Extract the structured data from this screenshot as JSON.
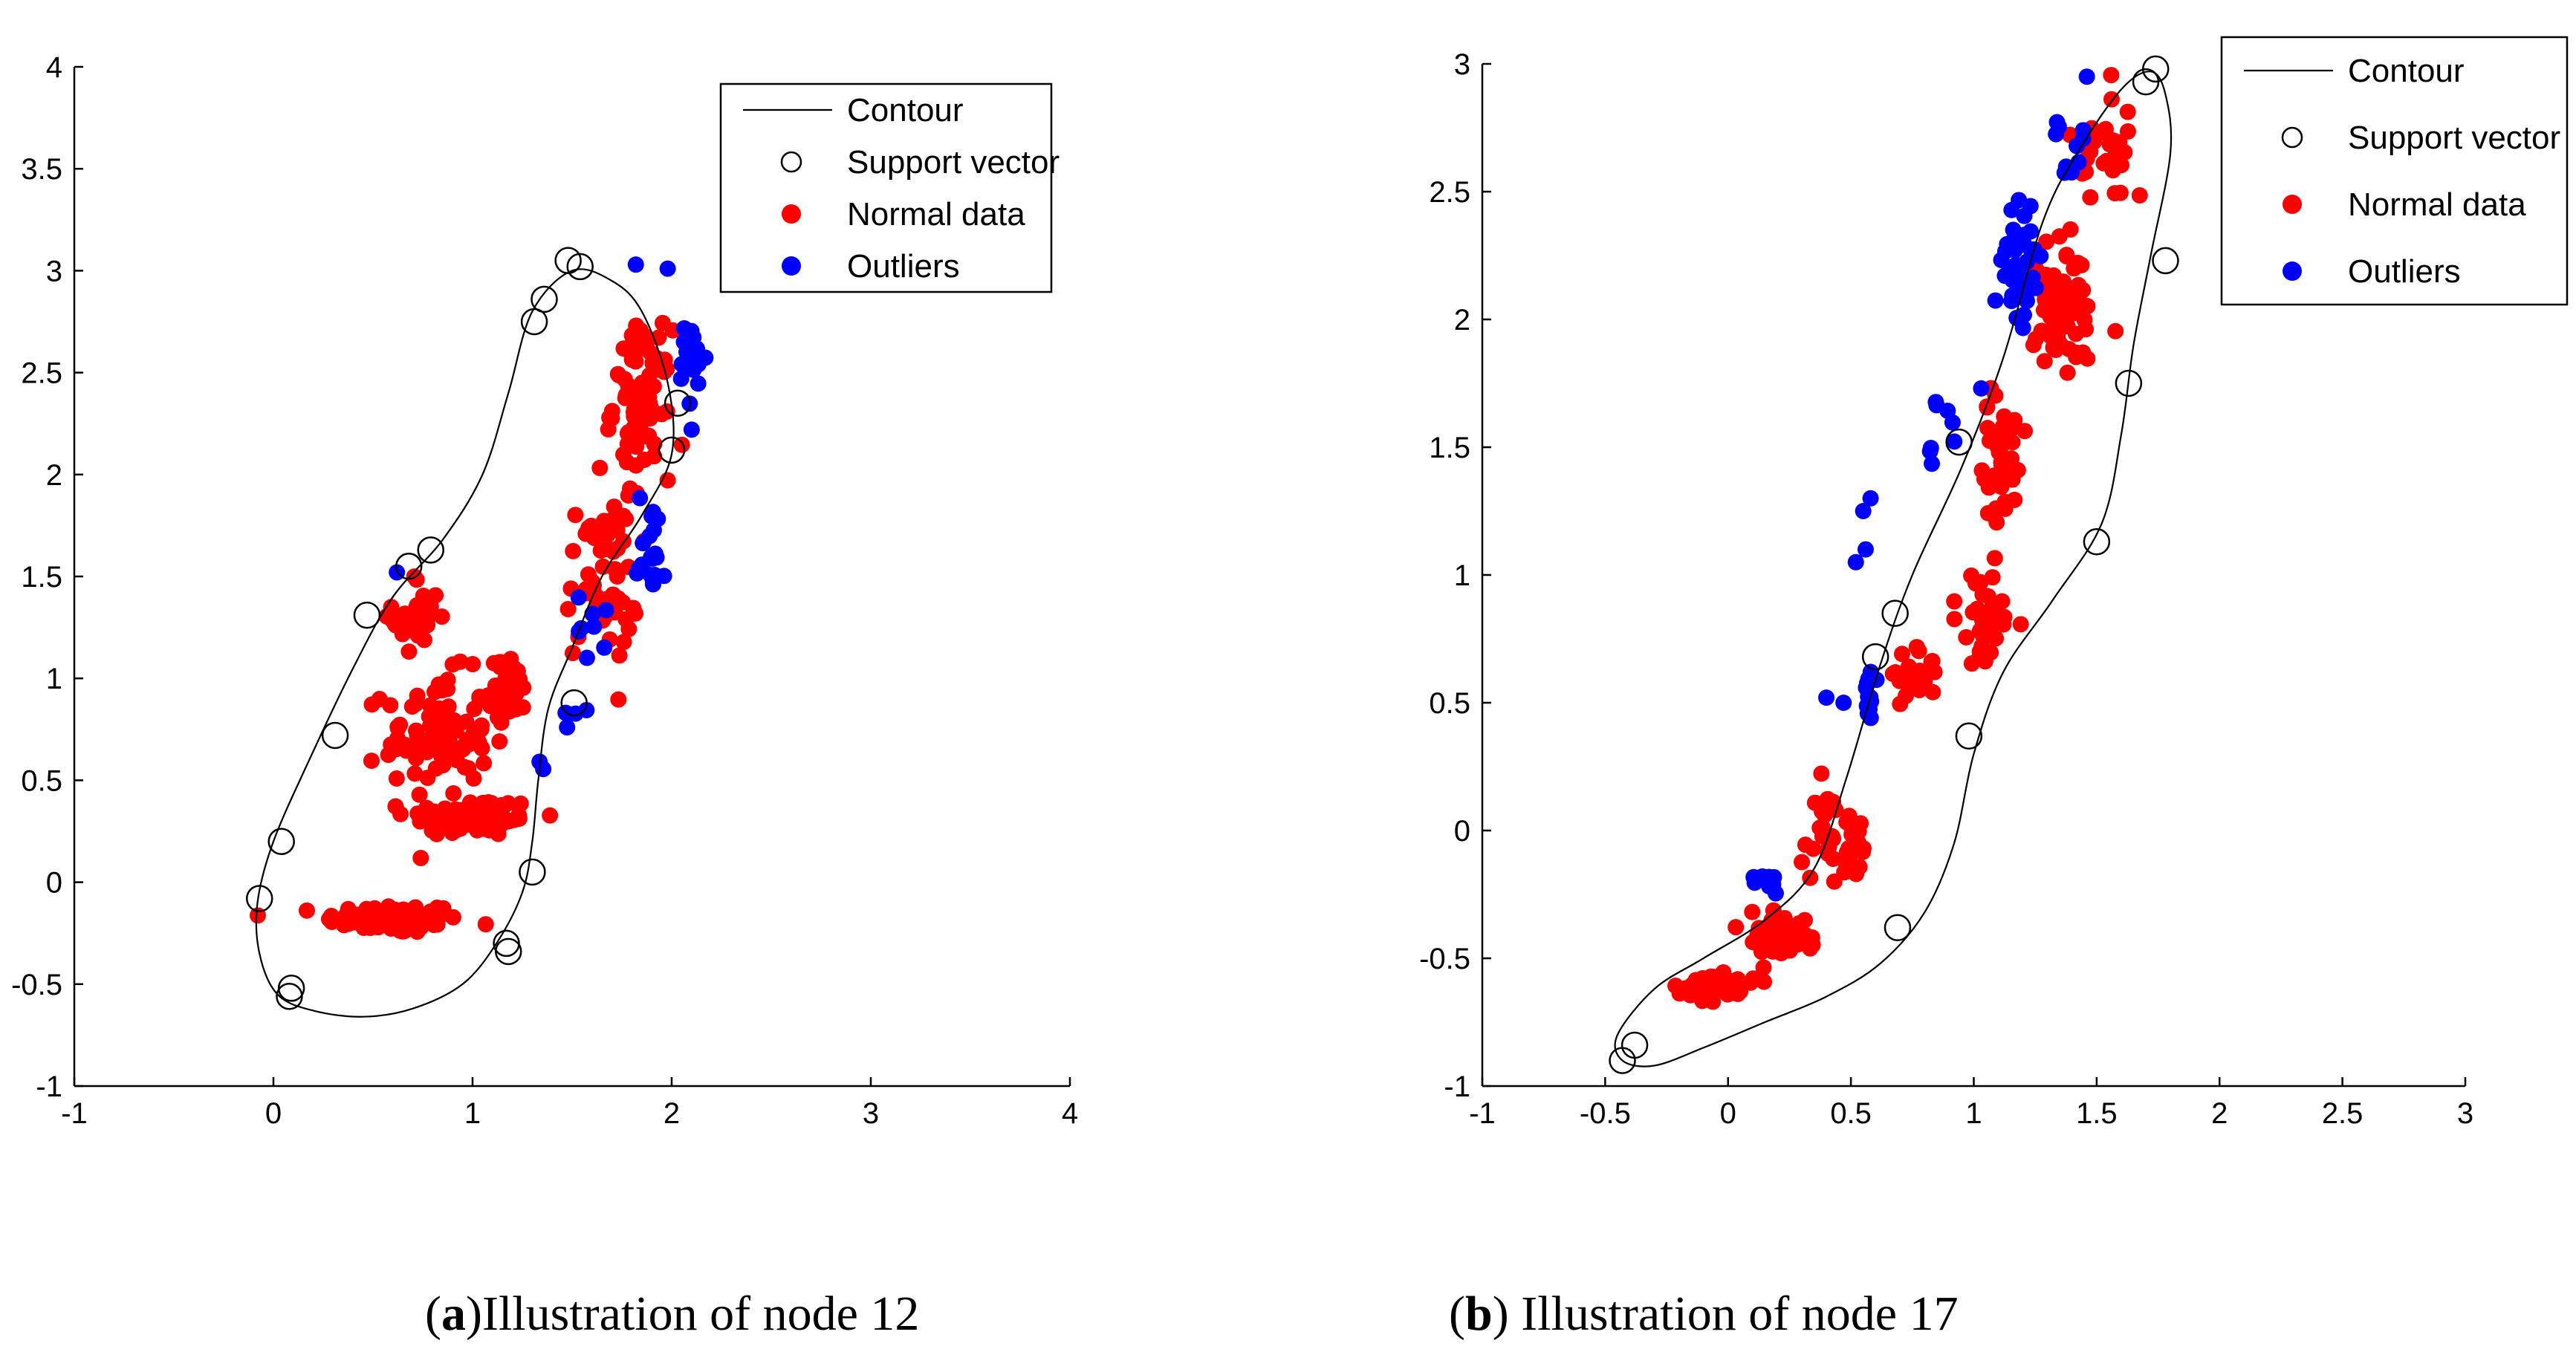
{
  "chart_data": [
    {
      "id": "a",
      "type": "scatter",
      "caption_label": "a",
      "caption_text": "Illustration of node 12",
      "xlim": [
        -1,
        4
      ],
      "ylim": [
        -1,
        4
      ],
      "x_ticks": [
        "-1",
        "0",
        "1",
        "2",
        "3",
        "4"
      ],
      "y_ticks": [
        "-1",
        "-0.5",
        "0",
        "0.5",
        "1",
        "1.5",
        "2",
        "2.5",
        "3",
        "3.5",
        "4"
      ],
      "legend": [
        {
          "label": "Contour",
          "marker": "line"
        },
        {
          "label": "Support vector",
          "marker": "open-circle"
        },
        {
          "label": "Normal data",
          "marker": "red-dot"
        },
        {
          "label": "Outliers",
          "marker": "blue-dot"
        }
      ],
      "colors": {
        "normal": "#ff0000",
        "outlier": "#0000ff",
        "contour": "#000000"
      },
      "contour": [
        [
          1.5,
          3.0
        ],
        [
          1.7,
          2.95
        ],
        [
          1.85,
          2.8
        ],
        [
          1.98,
          2.45
        ],
        [
          2.0,
          2.1
        ],
        [
          1.85,
          1.8
        ],
        [
          1.65,
          1.5
        ],
        [
          1.5,
          1.15
        ],
        [
          1.38,
          0.85
        ],
        [
          1.33,
          0.5
        ],
        [
          1.3,
          0.2
        ],
        [
          1.25,
          -0.05
        ],
        [
          1.12,
          -0.3
        ],
        [
          0.95,
          -0.5
        ],
        [
          0.7,
          -0.62
        ],
        [
          0.45,
          -0.66
        ],
        [
          0.2,
          -0.63
        ],
        [
          0.02,
          -0.55
        ],
        [
          -0.07,
          -0.35
        ],
        [
          -0.08,
          -0.1
        ],
        [
          0.0,
          0.2
        ],
        [
          0.18,
          0.6
        ],
        [
          0.4,
          1.05
        ],
        [
          0.6,
          1.4
        ],
        [
          0.85,
          1.68
        ],
        [
          1.05,
          2.0
        ],
        [
          1.18,
          2.4
        ],
        [
          1.3,
          2.8
        ],
        [
          1.5,
          3.0
        ]
      ],
      "support_vectors": [
        [
          1.48,
          3.05
        ],
        [
          1.54,
          3.02
        ],
        [
          1.36,
          2.86
        ],
        [
          1.31,
          2.75
        ],
        [
          0.79,
          1.63
        ],
        [
          0.68,
          1.55
        ],
        [
          0.47,
          1.31
        ],
        [
          0.31,
          0.72
        ],
        [
          0.04,
          0.2
        ],
        [
          -0.07,
          -0.08
        ],
        [
          0.09,
          -0.52
        ],
        [
          0.08,
          -0.56
        ],
        [
          1.17,
          -0.3
        ],
        [
          1.18,
          -0.34
        ],
        [
          1.3,
          0.05
        ],
        [
          1.51,
          0.88
        ],
        [
          2.03,
          2.35
        ],
        [
          2.0,
          2.12
        ]
      ],
      "normal_clusters": [
        {
          "cx": 0.6,
          "cy": -0.18,
          "sx": 0.28,
          "sy": 0.06,
          "n": 100
        },
        {
          "cx": 1.0,
          "cy": 0.32,
          "sx": 0.28,
          "sy": 0.08,
          "n": 80
        },
        {
          "cx": 0.82,
          "cy": 0.72,
          "sx": 0.22,
          "sy": 0.25,
          "n": 90
        },
        {
          "cx": 0.72,
          "cy": 1.3,
          "sx": 0.1,
          "sy": 0.18,
          "n": 30
        },
        {
          "cx": 1.18,
          "cy": 0.95,
          "sx": 0.08,
          "sy": 0.12,
          "n": 40
        },
        {
          "cx": 1.65,
          "cy": 1.5,
          "sx": 0.15,
          "sy": 0.35,
          "n": 60
        },
        {
          "cx": 1.85,
          "cy": 2.35,
          "sx": 0.12,
          "sy": 0.3,
          "n": 90
        }
      ],
      "outlier_clusters": [
        {
          "cx": 2.1,
          "cy": 2.55,
          "sx": 0.06,
          "sy": 0.2,
          "n": 22
        },
        {
          "cx": 1.9,
          "cy": 1.65,
          "sx": 0.06,
          "sy": 0.22,
          "n": 20
        },
        {
          "cx": 1.62,
          "cy": 1.25,
          "sx": 0.08,
          "sy": 0.15,
          "n": 8
        },
        {
          "cx": 1.5,
          "cy": 0.78,
          "sx": 0.04,
          "sy": 0.08,
          "n": 4
        },
        {
          "cx": 1.35,
          "cy": 0.6,
          "sx": 0.02,
          "sy": 0.04,
          "n": 2
        }
      ],
      "outlier_points": [
        [
          0.62,
          1.52
        ],
        [
          1.82,
          3.03
        ],
        [
          1.98,
          3.01
        ]
      ]
    },
    {
      "id": "b",
      "type": "scatter",
      "caption_label": "b",
      "caption_text": " Illustration of node 17",
      "xlim": [
        -1,
        3
      ],
      "ylim": [
        -1,
        3
      ],
      "x_ticks": [
        "-1",
        "-0.5",
        "0",
        "0.5",
        "1",
        "1.5",
        "2",
        "2.5",
        "3"
      ],
      "y_ticks": [
        "-1",
        "-0.5",
        "0",
        "0.5",
        "1",
        "1.5",
        "2",
        "2.5",
        "3"
      ],
      "legend": [
        {
          "label": "Contour",
          "marker": "line"
        },
        {
          "label": "Support vector",
          "marker": "open-circle"
        },
        {
          "label": "Normal data",
          "marker": "red-dot"
        },
        {
          "label": "Outliers",
          "marker": "blue-dot"
        }
      ],
      "colors": {
        "normal": "#ff0000",
        "outlier": "#0000ff",
        "contour": "#000000"
      },
      "contour": [
        [
          -0.43,
          -0.9
        ],
        [
          -0.3,
          -0.92
        ],
        [
          -0.1,
          -0.85
        ],
        [
          0.15,
          -0.75
        ],
        [
          0.4,
          -0.65
        ],
        [
          0.62,
          -0.52
        ],
        [
          0.8,
          -0.32
        ],
        [
          0.92,
          -0.05
        ],
        [
          1.0,
          0.3
        ],
        [
          1.12,
          0.62
        ],
        [
          1.32,
          0.9
        ],
        [
          1.52,
          1.2
        ],
        [
          1.6,
          1.55
        ],
        [
          1.65,
          1.9
        ],
        [
          1.72,
          2.25
        ],
        [
          1.8,
          2.65
        ],
        [
          1.78,
          2.88
        ],
        [
          1.72,
          2.97
        ],
        [
          1.6,
          2.9
        ],
        [
          1.42,
          2.65
        ],
        [
          1.28,
          2.38
        ],
        [
          1.12,
          1.85
        ],
        [
          0.95,
          1.42
        ],
        [
          0.75,
          1.0
        ],
        [
          0.62,
          0.65
        ],
        [
          0.48,
          0.2
        ],
        [
          0.35,
          -0.15
        ],
        [
          0.15,
          -0.35
        ],
        [
          -0.1,
          -0.5
        ],
        [
          -0.3,
          -0.62
        ],
        [
          -0.45,
          -0.8
        ],
        [
          -0.43,
          -0.9
        ]
      ],
      "support_vectors": [
        [
          -0.43,
          -0.9
        ],
        [
          -0.38,
          -0.84
        ],
        [
          0.69,
          -0.38
        ],
        [
          0.98,
          0.37
        ],
        [
          1.5,
          1.13
        ],
        [
          1.63,
          1.75
        ],
        [
          1.78,
          2.23
        ],
        [
          1.7,
          2.93
        ],
        [
          1.74,
          2.98
        ],
        [
          0.68,
          0.85
        ],
        [
          0.6,
          0.68
        ],
        [
          0.94,
          1.52
        ]
      ],
      "normal_clusters": [
        {
          "cx": -0.05,
          "cy": -0.6,
          "sx": 0.12,
          "sy": 0.05,
          "n": 50
        },
        {
          "cx": 0.2,
          "cy": -0.4,
          "sx": 0.12,
          "sy": 0.08,
          "n": 50
        },
        {
          "cx": 0.45,
          "cy": -0.05,
          "sx": 0.12,
          "sy": 0.14,
          "n": 40
        },
        {
          "cx": 0.75,
          "cy": 0.6,
          "sx": 0.1,
          "sy": 0.08,
          "n": 25
        },
        {
          "cx": 1.05,
          "cy": 0.85,
          "sx": 0.1,
          "sy": 0.15,
          "n": 35
        },
        {
          "cx": 1.12,
          "cy": 1.45,
          "sx": 0.08,
          "sy": 0.25,
          "n": 45
        },
        {
          "cx": 1.35,
          "cy": 2.05,
          "sx": 0.1,
          "sy": 0.2,
          "n": 80
        },
        {
          "cx": 1.55,
          "cy": 2.65,
          "sx": 0.1,
          "sy": 0.15,
          "n": 30
        }
      ],
      "outlier_clusters": [
        {
          "cx": 1.2,
          "cy": 2.2,
          "sx": 0.07,
          "sy": 0.2,
          "n": 40
        },
        {
          "cx": 1.38,
          "cy": 2.68,
          "sx": 0.06,
          "sy": 0.12,
          "n": 10
        },
        {
          "cx": 0.58,
          "cy": 0.55,
          "sx": 0.02,
          "sy": 0.12,
          "n": 12
        },
        {
          "cx": 0.17,
          "cy": -0.2,
          "sx": 0.04,
          "sy": 0.04,
          "n": 10
        },
        {
          "cx": 0.85,
          "cy": 1.55,
          "sx": 0.05,
          "sy": 0.12,
          "n": 8
        }
      ],
      "outlier_points": [
        [
          0.55,
          1.25
        ],
        [
          0.58,
          1.3
        ],
        [
          0.52,
          1.05
        ],
        [
          0.56,
          1.1
        ],
        [
          0.47,
          0.5
        ],
        [
          0.4,
          0.52
        ],
        [
          1.03,
          1.73
        ],
        [
          1.46,
          2.95
        ]
      ]
    }
  ]
}
